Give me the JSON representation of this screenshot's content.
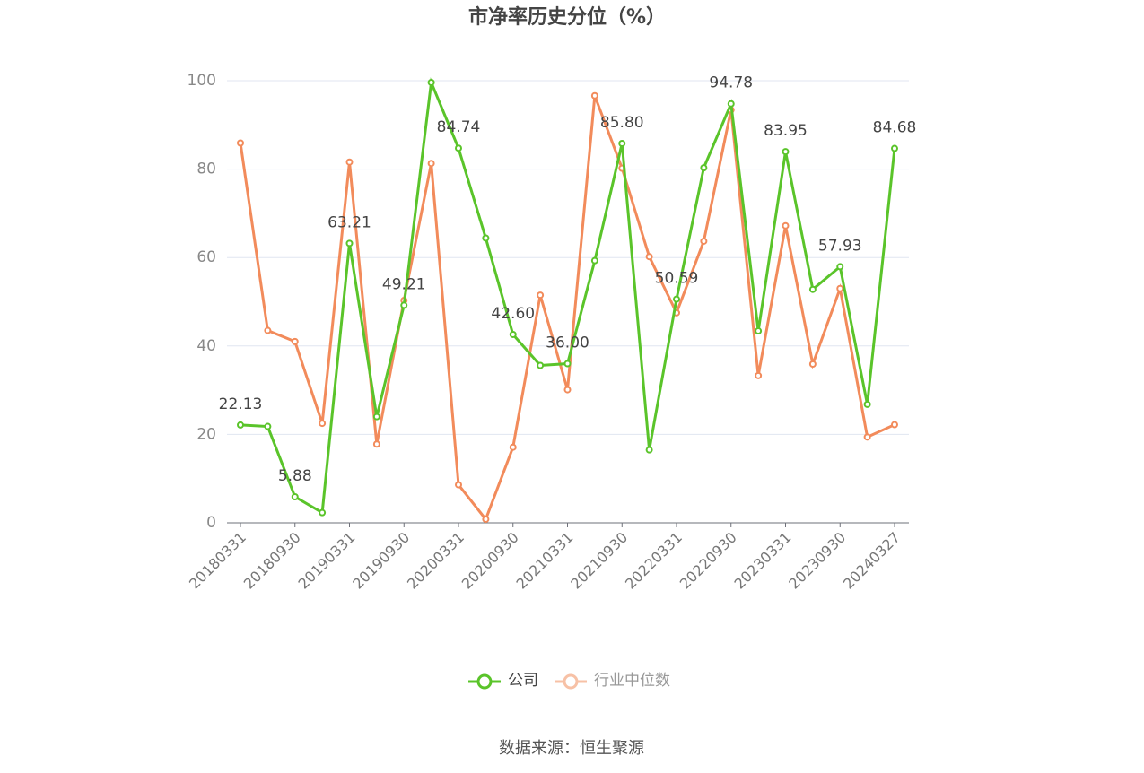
{
  "chart_data": {
    "type": "line",
    "title": "市净率历史分位（%）",
    "source": "数据来源：恒生聚源",
    "categories": [
      "20180331",
      null,
      "20180930",
      null,
      "20190331",
      null,
      "20190930",
      null,
      "20200331",
      null,
      "20200930",
      null,
      "20210331",
      null,
      "20210930",
      null,
      "20220331",
      null,
      "20220930",
      null,
      "20230331",
      null,
      "20230930",
      null,
      "20240327"
    ],
    "series": [
      {
        "name": "公司",
        "color": "#5ac42a",
        "values": [
          22.13,
          21.8,
          5.88,
          2.3,
          63.21,
          24,
          49.21,
          99.6,
          84.74,
          64.4,
          42.6,
          35.6,
          36,
          59.3,
          85.8,
          16.5,
          50.59,
          80.3,
          94.78,
          43.4,
          83.95,
          52.8,
          57.93,
          26.8,
          84.68
        ],
        "value_labels": [
          "22.13",
          null,
          "5.88",
          null,
          "63.21",
          null,
          "49.21",
          null,
          "84.74",
          null,
          "42.60",
          null,
          "36.00",
          null,
          "85.80",
          null,
          "50.59",
          null,
          "94.78",
          null,
          "83.95",
          null,
          "57.93",
          null,
          "84.68"
        ]
      },
      {
        "name": "行业中位数",
        "color": "#f28b5b",
        "values": [
          85.9,
          43.5,
          41,
          22.5,
          81.6,
          17.8,
          50.3,
          81.3,
          8.6,
          0.8,
          17.1,
          51.5,
          30.1,
          96.6,
          80.2,
          60.2,
          47.5,
          63.7,
          93.4,
          33.3,
          67.2,
          35.9,
          53,
          19.4,
          22.2
        ]
      }
    ],
    "ylim": [
      0,
      100
    ],
    "yticks": [
      0,
      20,
      40,
      60,
      80,
      100
    ],
    "grid": true,
    "legend": "bottom"
  }
}
